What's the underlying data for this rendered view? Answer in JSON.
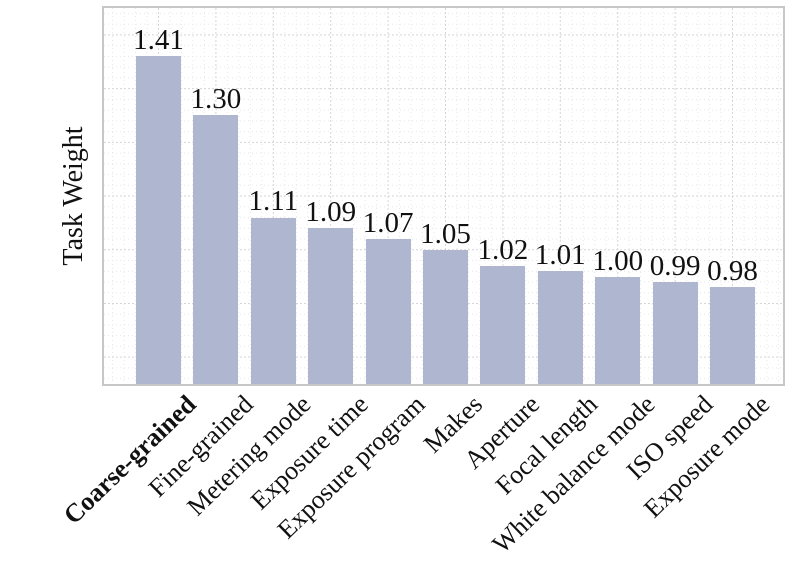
{
  "figure": {
    "colors": {
      "bar": "#afb6cf",
      "frame": "#c7c7c9",
      "grid_major": "#d5d5da",
      "grid_minor": "#e7e7eb",
      "text": "#111111"
    }
  },
  "chart_data": {
    "type": "bar",
    "title": "",
    "xlabel": "",
    "ylabel": "Task Weight",
    "categories": [
      "Coarse-grained",
      "Fine-grained",
      "Metering mode",
      "Exposure time",
      "Exposure program",
      "Makes",
      "Aperture",
      "Focal length",
      "White balance mode",
      "ISO speed",
      "Exposure mode"
    ],
    "values": [
      1.41,
      1.3,
      1.11,
      1.09,
      1.07,
      1.05,
      1.02,
      1.01,
      1.0,
      0.99,
      0.98
    ],
    "value_labels": [
      "1.41",
      "1.30",
      "1.11",
      "1.09",
      "1.07",
      "1.05",
      "1.02",
      "1.01",
      "1.00",
      "0.99",
      "0.98"
    ],
    "bold_category_index": 0,
    "ylim": [
      0.8,
      1.5
    ],
    "yticks_labeled": false,
    "grid": "dotted minor + dashed major, both axes",
    "legend_position": "none",
    "x_tick_rotation_deg": 44,
    "bar_color": "#afb6cf"
  }
}
